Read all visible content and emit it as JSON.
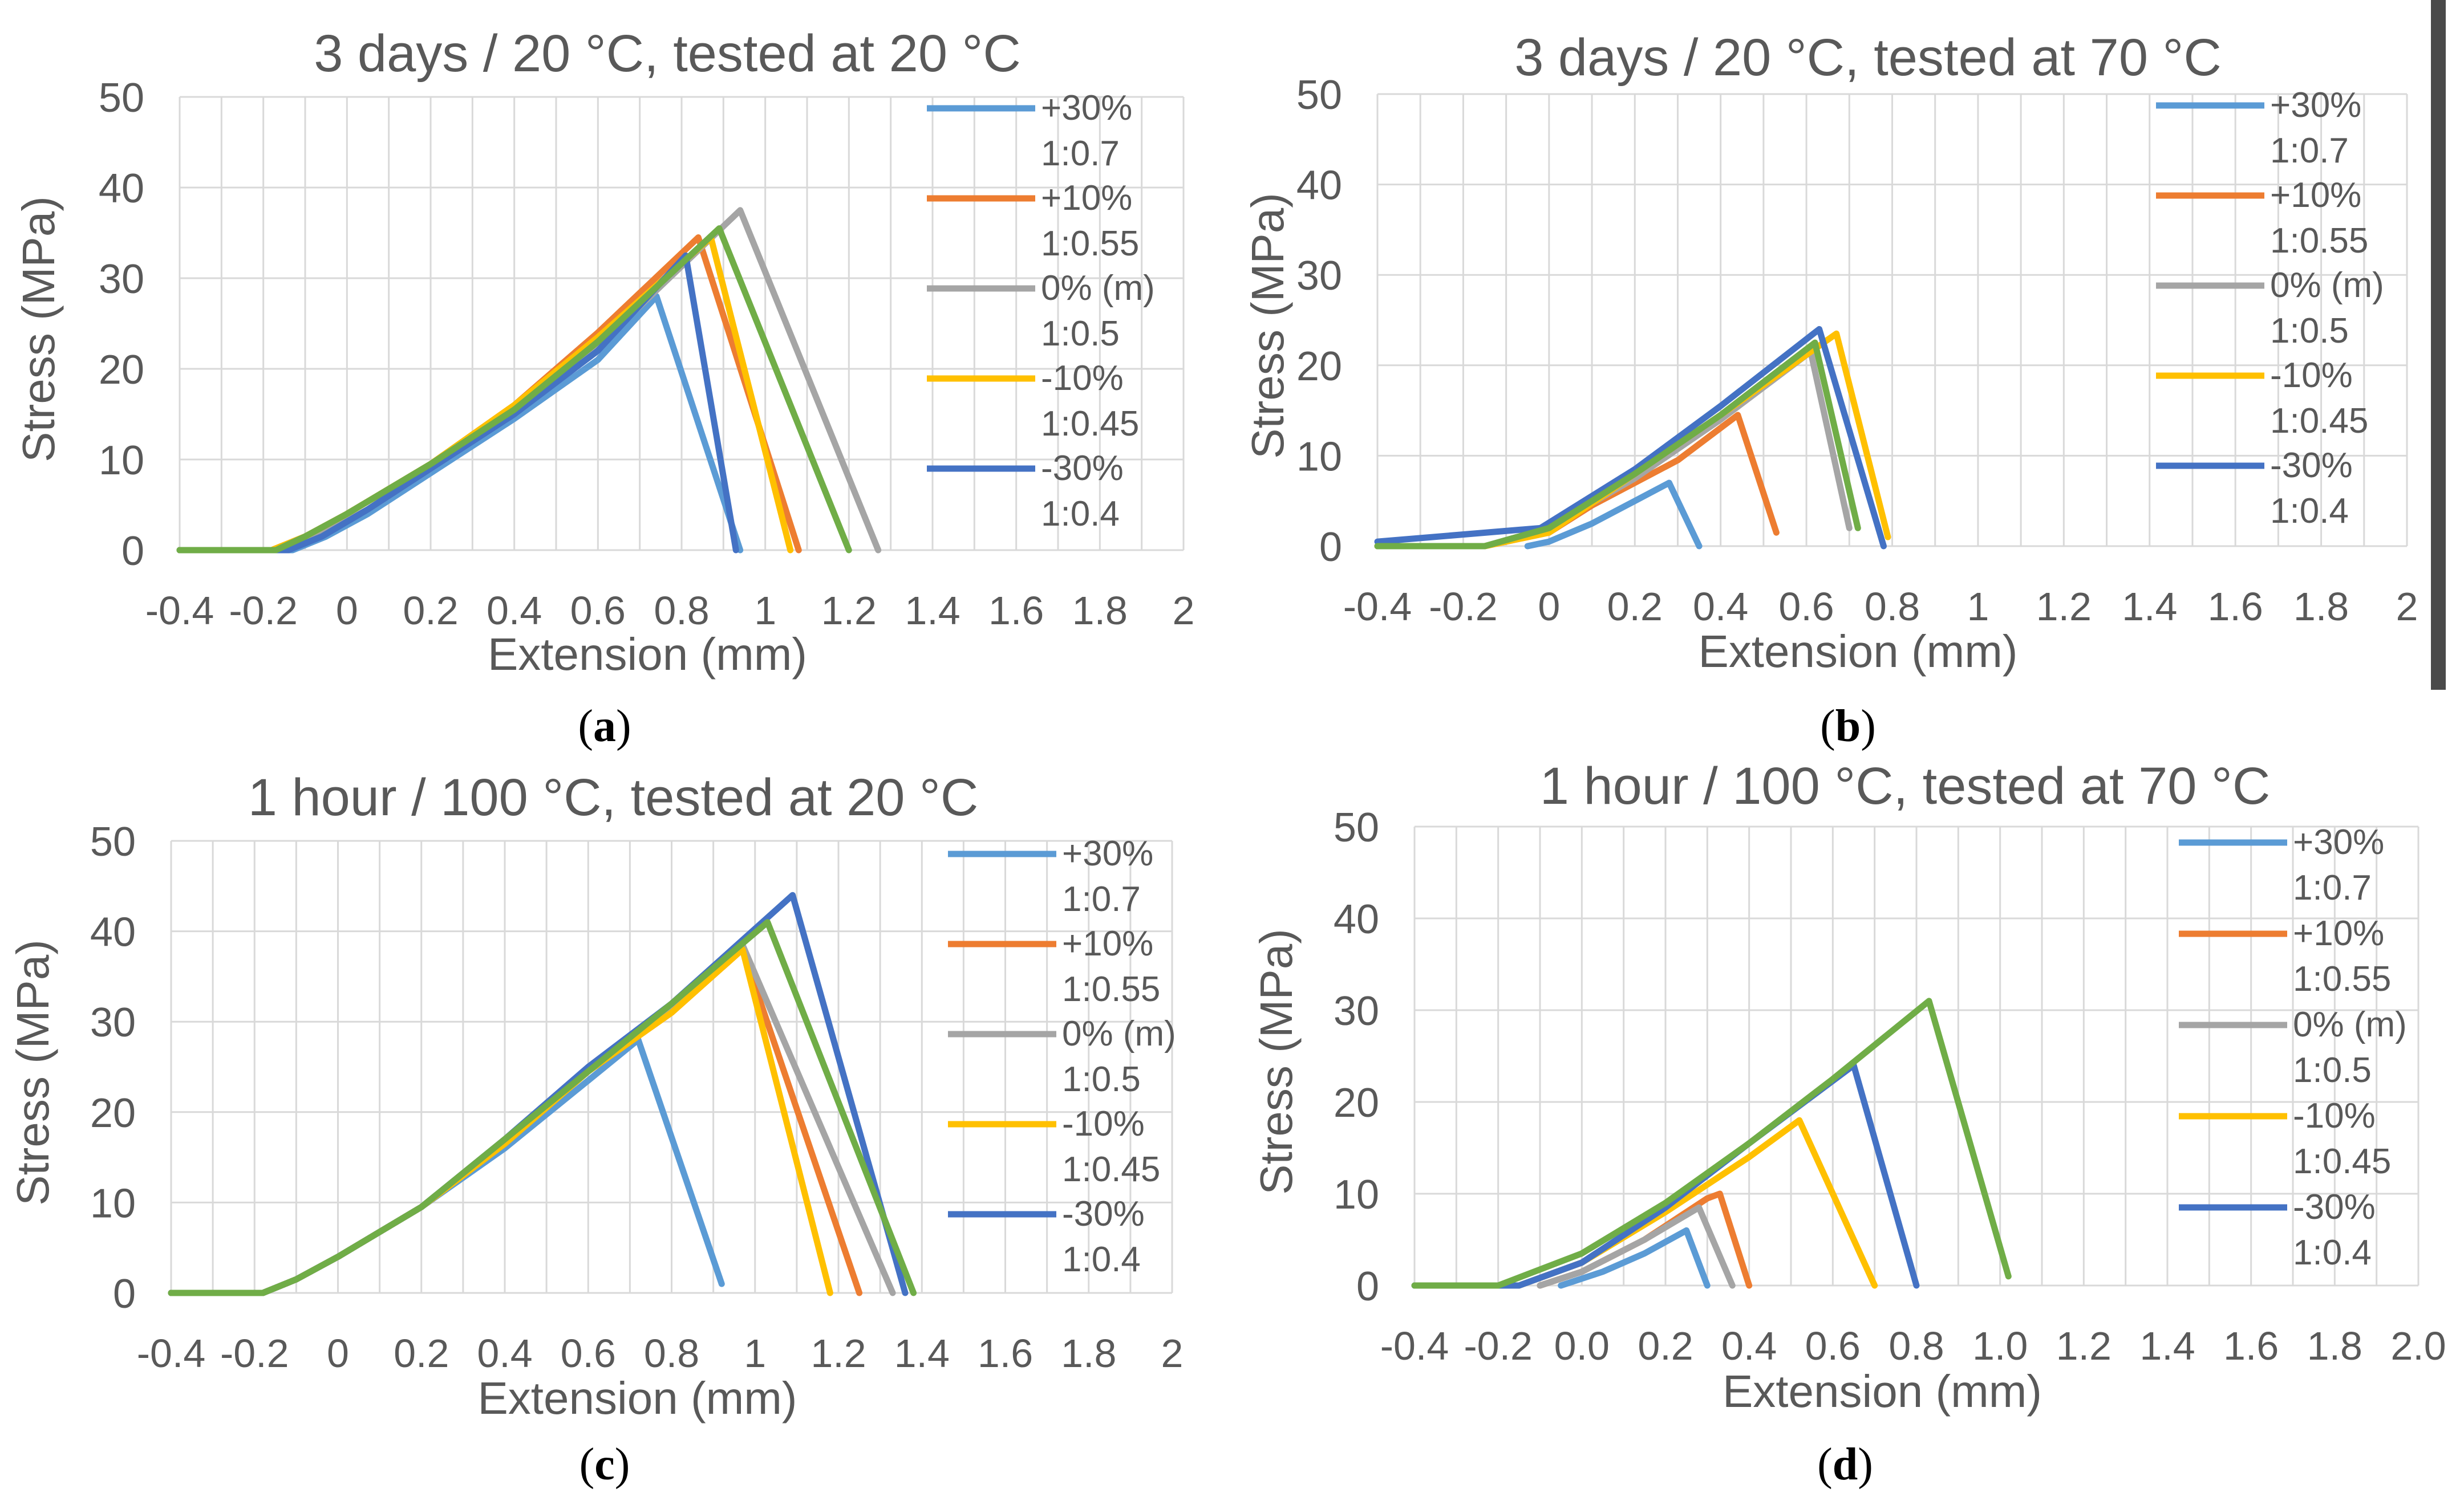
{
  "colors": {
    "plus30": "#5B9BD5",
    "plus10": "#ED7D31",
    "zero": "#A5A5A5",
    "minus10": "#FFC000",
    "minus30": "#4472C4",
    "green": "#70AD47",
    "grid": "#D9D9D9",
    "axis_text": "#595959"
  },
  "legend": [
    {
      "key": "plus30",
      "label1": "+30%",
      "label2": "1:0.7"
    },
    {
      "key": "plus10",
      "label1": "+10%",
      "label2": "1:0.55"
    },
    {
      "key": "zero",
      "label1": "0% (m)",
      "label2": "1:0.5"
    },
    {
      "key": "minus10",
      "label1": "-10%",
      "label2": "1:0.45"
    },
    {
      "key": "minus30",
      "label1": "-30%",
      "label2": "1:0.4"
    }
  ],
  "chart_data": [
    {
      "type": "line",
      "panel": "a",
      "caption_letter": "a",
      "title": "3 days / 20 °C, tested at 20 °C",
      "xlabel": "Extension (mm)",
      "ylabel": "Stress (MPa)",
      "xlim": [
        -0.4,
        2
      ],
      "ylim": [
        0,
        50
      ],
      "xticks": [
        "-0.4",
        "-0.2",
        "0",
        "0.2",
        "0.4",
        "0.6",
        "0.8",
        "1",
        "1.2",
        "1.4",
        "1.6",
        "1.8",
        "2"
      ],
      "yticks": [
        "0",
        "10",
        "20",
        "30",
        "40",
        "50"
      ],
      "series": [
        {
          "name": "+30% 1:0.7",
          "color_key": "plus30",
          "points": [
            [
              -0.4,
              0
            ],
            [
              -0.13,
              0
            ],
            [
              -0.05,
              1.5
            ],
            [
              0.05,
              4
            ],
            [
              0.2,
              8.5
            ],
            [
              0.4,
              14.5
            ],
            [
              0.6,
              21
            ],
            [
              0.74,
              28
            ],
            [
              0.94,
              0
            ]
          ]
        },
        {
          "name": "+10% 1:0.55",
          "color_key": "plus10",
          "points": [
            [
              -0.4,
              0
            ],
            [
              -0.18,
              0
            ],
            [
              -0.1,
              1.5
            ],
            [
              0,
              4
            ],
            [
              0.2,
              9.5
            ],
            [
              0.4,
              16
            ],
            [
              0.6,
              24
            ],
            [
              0.84,
              34.5
            ],
            [
              1.08,
              0
            ]
          ]
        },
        {
          "name": "0% (m) 1:0.5",
          "color_key": "zero",
          "points": [
            [
              -0.4,
              0
            ],
            [
              -0.15,
              0
            ],
            [
              -0.07,
              1.5
            ],
            [
              0.05,
              4.5
            ],
            [
              0.2,
              9
            ],
            [
              0.4,
              15.5
            ],
            [
              0.6,
              22.5
            ],
            [
              0.94,
              37.5
            ],
            [
              1.27,
              0
            ]
          ]
        },
        {
          "name": "-10% 1:0.45",
          "color_key": "minus10",
          "points": [
            [
              -0.4,
              0
            ],
            [
              -0.18,
              0
            ],
            [
              -0.1,
              1.5
            ],
            [
              0,
              4
            ],
            [
              0.2,
              9.5
            ],
            [
              0.4,
              16
            ],
            [
              0.6,
              23.5
            ],
            [
              0.87,
              34.5
            ],
            [
              1.06,
              0
            ]
          ]
        },
        {
          "name": "-30% 1:0.4",
          "color_key": "minus30",
          "points": [
            [
              -0.4,
              0
            ],
            [
              -0.14,
              0
            ],
            [
              -0.06,
              1.5
            ],
            [
              0.05,
              4.5
            ],
            [
              0.2,
              9
            ],
            [
              0.4,
              15
            ],
            [
              0.6,
              22
            ],
            [
              0.81,
              32.5
            ],
            [
              0.93,
              0
            ]
          ]
        },
        {
          "name": "green",
          "color_key": "green",
          "points": [
            [
              -0.4,
              0
            ],
            [
              -0.17,
              0
            ],
            [
              -0.1,
              1.5
            ],
            [
              0,
              4
            ],
            [
              0.2,
              9.5
            ],
            [
              0.4,
              15.5
            ],
            [
              0.6,
              23
            ],
            [
              0.89,
              35.5
            ],
            [
              1.2,
              0
            ]
          ]
        }
      ]
    },
    {
      "type": "line",
      "panel": "b",
      "caption_letter": "b",
      "title": "3 days / 20 °C, tested at 70 °C",
      "xlabel": "Extension (mm)",
      "ylabel": "Stress (MPa)",
      "xlim": [
        -0.4,
        2
      ],
      "ylim": [
        0,
        50
      ],
      "xticks": [
        "-0.4",
        "-0.2",
        "0",
        "0.2",
        "0.4",
        "0.6",
        "0.8",
        "1",
        "1.2",
        "1.4",
        "1.6",
        "1.8",
        "2"
      ],
      "yticks": [
        "0",
        "10",
        "20",
        "30",
        "40",
        "50"
      ],
      "series": [
        {
          "name": "+30% 1:0.7",
          "color_key": "plus30",
          "points": [
            [
              -0.05,
              0
            ],
            [
              0,
              0.5
            ],
            [
              0.1,
              2.5
            ],
            [
              0.2,
              5
            ],
            [
              0.28,
              7
            ],
            [
              0.35,
              0
            ]
          ]
        },
        {
          "name": "+10% 1:0.55",
          "color_key": "plus10",
          "points": [
            [
              -0.4,
              0
            ],
            [
              -0.15,
              0
            ],
            [
              0,
              1.5
            ],
            [
              0.1,
              4.5
            ],
            [
              0.3,
              9.5
            ],
            [
              0.44,
              14.5
            ],
            [
              0.53,
              1.5
            ]
          ]
        },
        {
          "name": "0% (m) 1:0.5",
          "color_key": "zero",
          "points": [
            [
              -0.4,
              0
            ],
            [
              -0.15,
              0
            ],
            [
              0,
              2
            ],
            [
              0.2,
              7.5
            ],
            [
              0.4,
              14
            ],
            [
              0.61,
              21.5
            ],
            [
              0.7,
              2
            ]
          ]
        },
        {
          "name": "-10% 1:0.45",
          "color_key": "minus10",
          "points": [
            [
              -0.4,
              0
            ],
            [
              -0.15,
              0
            ],
            [
              0,
              1.5
            ],
            [
              0.2,
              8
            ],
            [
              0.4,
              14.5
            ],
            [
              0.67,
              23.5
            ],
            [
              0.79,
              1
            ]
          ]
        },
        {
          "name": "-30% 1:0.4",
          "color_key": "minus30",
          "points": [
            [
              -0.4,
              0.5
            ],
            [
              -0.02,
              2
            ],
            [
              0.2,
              8.5
            ],
            [
              0.4,
              15.5
            ],
            [
              0.63,
              24
            ],
            [
              0.78,
              0
            ]
          ]
        },
        {
          "name": "green",
          "color_key": "green",
          "points": [
            [
              -0.4,
              0
            ],
            [
              -0.15,
              0
            ],
            [
              0,
              2
            ],
            [
              0.2,
              8
            ],
            [
              0.4,
              14.5
            ],
            [
              0.62,
              22.5
            ],
            [
              0.72,
              2
            ]
          ]
        }
      ]
    },
    {
      "type": "line",
      "panel": "c",
      "caption_letter": "c",
      "title": "1 hour / 100 °C, tested at 20 °C",
      "xlabel": "Extension (mm)",
      "ylabel": "Stress (MPa)",
      "xlim": [
        -0.4,
        2
      ],
      "ylim": [
        0,
        50
      ],
      "xticks": [
        "-0.4",
        "-0.2",
        "0",
        "0.2",
        "0.4",
        "0.6",
        "0.8",
        "1",
        "1.2",
        "1.4",
        "1.6",
        "1.8",
        "2"
      ],
      "yticks": [
        "0",
        "10",
        "20",
        "30",
        "40",
        "50"
      ],
      "series": [
        {
          "name": "+30% 1:0.7",
          "color_key": "plus30",
          "points": [
            [
              -0.4,
              0
            ],
            [
              -0.18,
              0
            ],
            [
              -0.1,
              1.5
            ],
            [
              0,
              4
            ],
            [
              0.2,
              9.5
            ],
            [
              0.4,
              16
            ],
            [
              0.6,
              23.5
            ],
            [
              0.72,
              28
            ],
            [
              0.92,
              1
            ]
          ]
        },
        {
          "name": "+10% 1:0.55",
          "color_key": "plus10",
          "points": [
            [
              -0.4,
              0
            ],
            [
              -0.18,
              0
            ],
            [
              -0.1,
              1.5
            ],
            [
              0,
              4
            ],
            [
              0.2,
              9.5
            ],
            [
              0.4,
              16.5
            ],
            [
              0.6,
              24.5
            ],
            [
              0.8,
              31
            ],
            [
              0.97,
              38
            ],
            [
              1.25,
              0
            ]
          ]
        },
        {
          "name": "0% (m) 1:0.5",
          "color_key": "zero",
          "points": [
            [
              -0.4,
              0
            ],
            [
              -0.18,
              0
            ],
            [
              -0.1,
              1.5
            ],
            [
              0,
              4
            ],
            [
              0.2,
              9.5
            ],
            [
              0.4,
              16.5
            ],
            [
              0.6,
              24.5
            ],
            [
              0.8,
              31.5
            ],
            [
              0.97,
              38.5
            ],
            [
              1.33,
              0
            ]
          ]
        },
        {
          "name": "-10% 1:0.45",
          "color_key": "minus10",
          "points": [
            [
              -0.4,
              0
            ],
            [
              -0.18,
              0
            ],
            [
              -0.1,
              1.5
            ],
            [
              0,
              4
            ],
            [
              0.2,
              9.5
            ],
            [
              0.4,
              16.5
            ],
            [
              0.6,
              24.5
            ],
            [
              0.8,
              31
            ],
            [
              0.97,
              38
            ],
            [
              1.18,
              0
            ]
          ]
        },
        {
          "name": "-30% 1:0.4",
          "color_key": "minus30",
          "points": [
            [
              -0.4,
              0
            ],
            [
              -0.18,
              0
            ],
            [
              -0.1,
              1.5
            ],
            [
              0,
              4
            ],
            [
              0.2,
              9.5
            ],
            [
              0.4,
              17
            ],
            [
              0.6,
              25
            ],
            [
              0.8,
              32
            ],
            [
              1.09,
              44
            ],
            [
              1.36,
              0
            ]
          ]
        },
        {
          "name": "green",
          "color_key": "green",
          "points": [
            [
              -0.4,
              0
            ],
            [
              -0.18,
              0
            ],
            [
              -0.1,
              1.5
            ],
            [
              0,
              4
            ],
            [
              0.2,
              9.5
            ],
            [
              0.4,
              17
            ],
            [
              0.6,
              24.5
            ],
            [
              0.8,
              32
            ],
            [
              1.03,
              41
            ],
            [
              1.38,
              0
            ]
          ]
        }
      ]
    },
    {
      "type": "line",
      "panel": "d",
      "caption_letter": "d",
      "title": "1 hour / 100 °C, tested at 70 °C",
      "xlabel": "Extension (mm)",
      "ylabel": "Stress (MPa)",
      "xlim": [
        -0.4,
        2
      ],
      "ylim": [
        0,
        50
      ],
      "xticks": [
        "-0.4",
        "-0.2",
        "0.0",
        "0.2",
        "0.4",
        "0.6",
        "0.8",
        "1.0",
        "1.2",
        "1.4",
        "1.6",
        "1.8",
        "2.0"
      ],
      "yticks": [
        "0",
        "10",
        "20",
        "30",
        "40",
        "50"
      ],
      "series": [
        {
          "name": "+30% 1:0.7",
          "color_key": "plus30",
          "points": [
            [
              -0.05,
              0
            ],
            [
              0.05,
              1.5
            ],
            [
              0.15,
              3.5
            ],
            [
              0.25,
              6
            ],
            [
              0.3,
              0
            ]
          ]
        },
        {
          "name": "+10% 1:0.55",
          "color_key": "plus10",
          "points": [
            [
              -0.1,
              0
            ],
            [
              0,
              1.5
            ],
            [
              0.15,
              5
            ],
            [
              0.3,
              9.5
            ],
            [
              0.33,
              10
            ],
            [
              0.4,
              0
            ]
          ]
        },
        {
          "name": "0% (m) 1:0.5",
          "color_key": "zero",
          "points": [
            [
              -0.1,
              0
            ],
            [
              0,
              1.5
            ],
            [
              0.15,
              5
            ],
            [
              0.28,
              8.5
            ],
            [
              0.36,
              0
            ]
          ]
        },
        {
          "name": "-10% 1:0.45",
          "color_key": "minus10",
          "points": [
            [
              -0.15,
              0
            ],
            [
              0,
              2.5
            ],
            [
              0.2,
              8
            ],
            [
              0.4,
              14
            ],
            [
              0.52,
              18
            ],
            [
              0.7,
              0
            ]
          ]
        },
        {
          "name": "-30% 1:0.4",
          "color_key": "minus30",
          "points": [
            [
              -0.4,
              0
            ],
            [
              -0.15,
              0
            ],
            [
              0,
              2.5
            ],
            [
              0.2,
              8.5
            ],
            [
              0.4,
              15.5
            ],
            [
              0.65,
              24
            ],
            [
              0.8,
              0
            ]
          ]
        },
        {
          "name": "green",
          "color_key": "green",
          "points": [
            [
              -0.4,
              0
            ],
            [
              -0.2,
              0
            ],
            [
              0,
              3.5
            ],
            [
              0.2,
              9
            ],
            [
              0.4,
              15.5
            ],
            [
              0.6,
              22.5
            ],
            [
              0.83,
              31
            ],
            [
              1.02,
              1
            ]
          ]
        }
      ]
    }
  ]
}
